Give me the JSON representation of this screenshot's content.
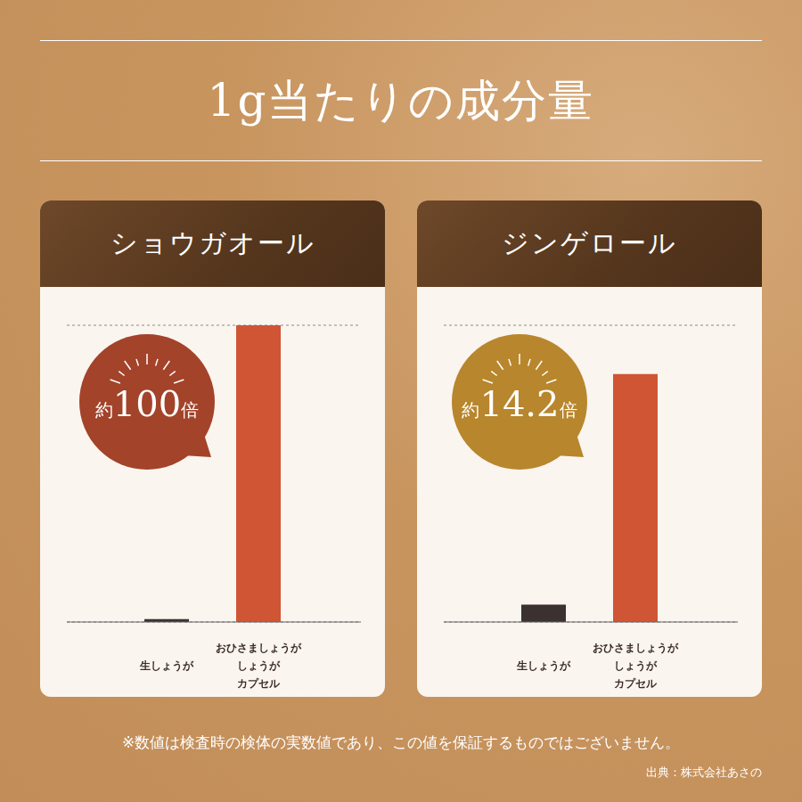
{
  "header": {
    "title": "1g当たりの成分量"
  },
  "chart_data": [
    {
      "type": "bar",
      "title": "ショウガオール",
      "categories": [
        "生しょうが",
        "おひさましょうが\nしょうが\nカプセル"
      ],
      "values": [
        1,
        100
      ],
      "colors": [
        "#3b3131",
        "#cf5535"
      ],
      "ylim": [
        0,
        100
      ],
      "yticks": [
        0,
        10,
        20,
        30,
        40,
        50,
        60,
        70,
        80,
        90,
        100
      ],
      "grid": true,
      "tick_labels": "x",
      "annotation": "約100倍"
    },
    {
      "type": "bar",
      "title": "ジンゲロール",
      "categories": [
        "生しょうが",
        "おひさましょうが\nしょうが\nカプセル"
      ],
      "values": [
        1,
        14.2
      ],
      "colors": [
        "#3b3131",
        "#cf5535"
      ],
      "ylim": [
        0,
        17
      ],
      "yticks": [
        0,
        1.7,
        3.4,
        5.1,
        6.8,
        8.5,
        10.2,
        11.9,
        13.6,
        15.3,
        17
      ],
      "grid": true,
      "tick_labels": "x",
      "annotation": "約14.2倍"
    }
  ],
  "footnote": "※数値は検査時の検体の実数値であり、この値を保証するものではございません。",
  "source": "出典：株式会社あさの"
}
